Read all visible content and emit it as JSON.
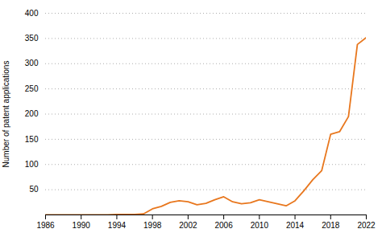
{
  "chart_data": {
    "type": "line",
    "y_label": "Number of patent applications",
    "x": [
      1986,
      1987,
      1988,
      1989,
      1990,
      1991,
      1992,
      1993,
      1994,
      1995,
      1996,
      1997,
      1998,
      1999,
      2000,
      2001,
      2002,
      2003,
      2004,
      2005,
      2006,
      2007,
      2008,
      2009,
      2010,
      2011,
      2012,
      2013,
      2014,
      2015,
      2016,
      2017,
      2018,
      2019,
      2020,
      2021,
      2022
    ],
    "values": [
      0,
      0,
      0,
      0,
      0,
      0,
      0,
      0,
      1,
      1,
      1,
      2,
      12,
      17,
      25,
      28,
      26,
      20,
      23,
      30,
      36,
      26,
      22,
      24,
      30,
      26,
      22,
      18,
      28,
      48,
      70,
      88,
      160,
      165,
      195,
      338,
      352
    ],
    "color": "#E8771E",
    "xlim": [
      1986,
      2022
    ],
    "xticks": [
      1986,
      1990,
      1994,
      1998,
      2002,
      2006,
      2010,
      2014,
      2018,
      2022
    ],
    "ylim": [
      0,
      400
    ],
    "yticks": [
      50,
      100,
      150,
      200,
      250,
      300,
      350,
      400
    ],
    "grid": true
  }
}
